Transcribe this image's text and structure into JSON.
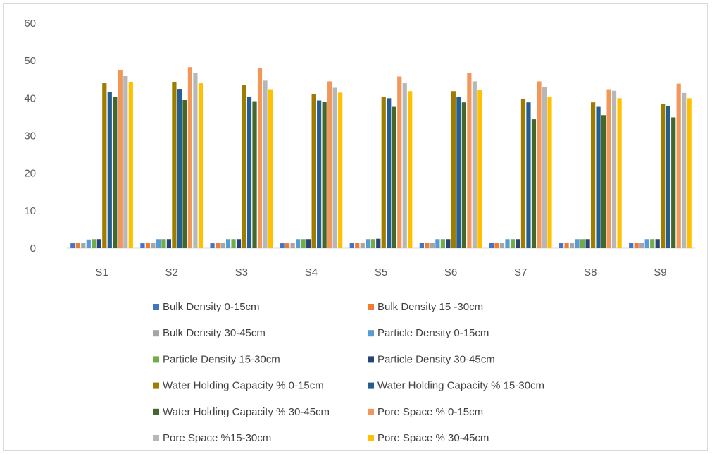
{
  "chart_data": {
    "type": "bar",
    "title": "",
    "xlabel": "",
    "ylabel": "",
    "ylim": [
      0,
      60
    ],
    "yticks": [
      0,
      10,
      20,
      30,
      40,
      50,
      60
    ],
    "grid": false,
    "legend_position": "bottom",
    "categories": [
      "S1",
      "S2",
      "S3",
      "S4",
      "S5",
      "S6",
      "S7",
      "S8",
      "S9"
    ],
    "series": [
      {
        "name": "Bulk Density 0-15cm",
        "color": "#4472c4",
        "values": [
          1.3,
          1.3,
          1.3,
          1.3,
          1.4,
          1.4,
          1.4,
          1.5,
          1.5
        ]
      },
      {
        "name": "Bulk Density 15 -30cm",
        "color": "#ed7d31",
        "values": [
          1.4,
          1.4,
          1.4,
          1.3,
          1.4,
          1.4,
          1.5,
          1.5,
          1.5
        ]
      },
      {
        "name": "Bulk Density 30-45cm",
        "color": "#a5a5a5",
        "values": [
          1.4,
          1.4,
          1.4,
          1.4,
          1.4,
          1.4,
          1.5,
          1.5,
          1.5
        ]
      },
      {
        "name": "Particle Density 0-15cm",
        "color": "#5b9bd5",
        "values": [
          2.3,
          2.4,
          2.4,
          2.4,
          2.4,
          2.4,
          2.4,
          2.4,
          2.4
        ]
      },
      {
        "name": "Particle Density 15-30cm",
        "color": "#70ad47",
        "values": [
          2.4,
          2.4,
          2.4,
          2.4,
          2.4,
          2.4,
          2.4,
          2.4,
          2.4
        ]
      },
      {
        "name": "Particle Density 30-45cm",
        "color": "#264478",
        "values": [
          2.4,
          2.4,
          2.4,
          2.4,
          2.5,
          2.4,
          2.4,
          2.4,
          2.4
        ]
      },
      {
        "name": "Water Holding Capacity % 0-15cm",
        "color": "#9e7c00",
        "values": [
          44.0,
          44.4,
          43.6,
          41.0,
          40.3,
          41.9,
          39.7,
          38.9,
          38.4
        ]
      },
      {
        "name": "Water Holding Capacity % 15-30cm",
        "color": "#255e91",
        "values": [
          41.6,
          42.5,
          40.3,
          39.4,
          40.0,
          40.3,
          38.9,
          37.7,
          38.0
        ]
      },
      {
        "name": "Water Holding Capacity  % 30-45cm",
        "color": "#43682b",
        "values": [
          40.3,
          39.5,
          39.2,
          39.0,
          37.7,
          38.9,
          34.4,
          35.5,
          34.9
        ]
      },
      {
        "name": "Pore Space % 0-15cm",
        "color": "#f1975a",
        "values": [
          47.6,
          48.3,
          48.1,
          44.5,
          45.8,
          46.7,
          44.5,
          42.4,
          43.9
        ]
      },
      {
        "name": "Pore Space %15-30cm",
        "color": "#b7b7b7",
        "values": [
          45.9,
          46.8,
          44.7,
          42.8,
          44.0,
          44.5,
          43.0,
          42.0,
          41.4
        ]
      },
      {
        "name": "Pore Space % 30-45cm",
        "color": "#ffc000",
        "values": [
          44.3,
          44.0,
          42.4,
          41.5,
          41.9,
          42.3,
          40.3,
          40.0,
          40.0
        ]
      }
    ]
  }
}
